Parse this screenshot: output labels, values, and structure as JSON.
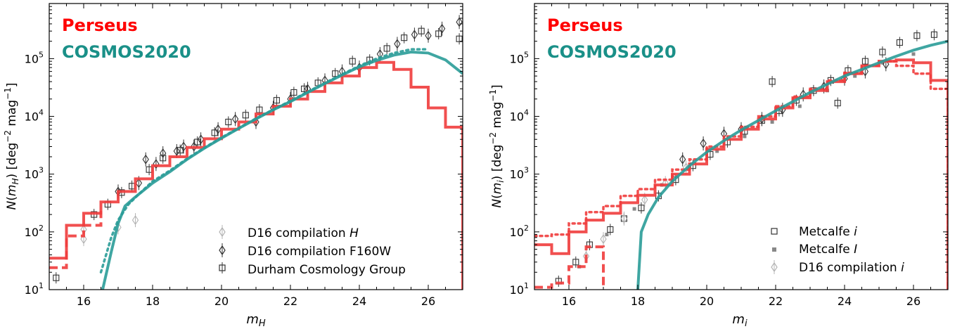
{
  "chart_data": [
    {
      "type": "line",
      "xlabel": "m_H",
      "ylabel": "N(m_H) [deg^-2 mag^-1]",
      "xlim": [
        15,
        27
      ],
      "ylim": [
        10,
        900000
      ],
      "yscale": "log",
      "x_ticks": [
        16,
        18,
        20,
        22,
        24,
        26
      ],
      "annotations": [
        {
          "text": "Perseus",
          "color": "#ff0000"
        },
        {
          "text": "COSMOS2020",
          "color": "#1a9088"
        }
      ],
      "legend": {
        "placement": "lower-right",
        "entries": [
          "D16 compilation H",
          "D16 compilation F160W",
          "Durham Cosmology Group"
        ]
      },
      "series": [
        {
          "name": "Perseus",
          "kind": "step",
          "style": "solid",
          "color": "#f03c3c",
          "edges": [
            15,
            15.5,
            16,
            16.5,
            17,
            17.5,
            18,
            18.5,
            19,
            19.5,
            20,
            20.5,
            21,
            21.5,
            22,
            22.5,
            23,
            23.5,
            24,
            24.5,
            25,
            25.5,
            26,
            26.5,
            27
          ],
          "values": [
            35,
            130,
            210,
            330,
            500,
            830,
            1400,
            2000,
            2900,
            4100,
            6000,
            8000,
            11000,
            15000,
            20000,
            27000,
            38000,
            50000,
            70000,
            86000,
            65000,
            32000,
            14000,
            6500
          ]
        },
        {
          "kind": "step",
          "style": "dashed",
          "color": "#f03c3c",
          "edges": [
            15,
            15.5,
            16,
            16.5
          ],
          "values": [
            24,
            85,
            130,
            230
          ]
        },
        {
          "name": "COSMOS2020",
          "kind": "line",
          "style": "solid",
          "color": "#2a9c98",
          "x": [
            16.55,
            16.8,
            17.0,
            17.2,
            17.45,
            18.0,
            18.5,
            19.0,
            19.5,
            20.0,
            20.5,
            21.0,
            21.5,
            22.0,
            22.5,
            23.0,
            23.5,
            24.0,
            24.5,
            25.0,
            25.5,
            26.0,
            26.5,
            27.0
          ],
          "y": [
            10,
            45,
            140,
            280,
            380,
            700,
            1100,
            1800,
            2800,
            4200,
            6200,
            9000,
            13000,
            18000,
            26000,
            37000,
            52000,
            72000,
            93000,
            115000,
            130000,
            125000,
            95000,
            55000
          ]
        },
        {
          "kind": "line",
          "style": "dotted",
          "color": "#2a9c98",
          "x": [
            16.5,
            16.8,
            17.0,
            17.3,
            17.6,
            18.0,
            18.5,
            19.0,
            19.5,
            20.0,
            21.0,
            22.0,
            23.0,
            24.0,
            24.5,
            25.0,
            25.5,
            26.0
          ],
          "y": [
            20,
            80,
            160,
            300,
            450,
            750,
            1150,
            1850,
            2850,
            4300,
            9200,
            18500,
            38000,
            75000,
            100000,
            125000,
            145000,
            145000
          ]
        }
      ],
      "points": {
        "d16_h": {
          "marker": "diamond",
          "color": "#b4b4b4",
          "x": [
            16.0,
            16.0,
            17.0,
            17.5
          ],
          "y": [
            110,
            75,
            120,
            160
          ]
        },
        "d16_f160w": {
          "marker": "diamond",
          "color": "#333333",
          "x": [
            17.8,
            18.3,
            18.9,
            19.4,
            19.9,
            20.4,
            21.0,
            21.5,
            22.0,
            22.5,
            23.0,
            23.5,
            24.0,
            24.6,
            25.1,
            25.6,
            26.0,
            26.4,
            26.9,
            17.0,
            17.6,
            18.1,
            18.7,
            19.2
          ],
          "y": [
            1800,
            2300,
            3000,
            4000,
            6000,
            9000,
            8000,
            14000,
            20000,
            30000,
            42000,
            60000,
            70000,
            120000,
            180000,
            260000,
            250000,
            330000,
            430000,
            500,
            700,
            1500,
            2500,
            3000
          ]
        },
        "durham": {
          "marker": "square",
          "color": "#333333",
          "x": [
            15.2,
            16.3,
            16.7,
            17.1,
            17.4,
            17.9,
            18.3,
            18.8,
            19.3,
            19.8,
            20.2,
            20.7,
            21.1,
            21.6,
            22.1,
            22.4,
            22.8,
            23.3,
            23.8,
            24.3,
            24.8,
            25.3,
            25.8,
            26.3,
            26.9
          ],
          "y": [
            16,
            200,
            300,
            480,
            620,
            1200,
            1900,
            2600,
            3600,
            5200,
            8000,
            10500,
            13000,
            19000,
            26000,
            30000,
            38000,
            55000,
            90000,
            95000,
            150000,
            230000,
            300000,
            270000,
            220000
          ]
        }
      }
    },
    {
      "type": "line",
      "xlabel": "m_i",
      "ylabel": "N(m_i) [deg^-2 mag^-1]",
      "xlim": [
        15,
        27
      ],
      "ylim": [
        10,
        900000
      ],
      "yscale": "log",
      "x_ticks": [
        16,
        18,
        20,
        22,
        24,
        26
      ],
      "annotations": [
        {
          "text": "Perseus",
          "color": "#ff0000"
        },
        {
          "text": "COSMOS2020",
          "color": "#1a9088"
        }
      ],
      "legend": {
        "placement": "lower-right",
        "entries": [
          "Metcalfe i",
          "Metcalfe I",
          "D16 compilation i"
        ]
      },
      "series": [
        {
          "name": "Perseus",
          "kind": "step",
          "style": "solid",
          "color": "#f03c3c",
          "edges": [
            15,
            15.5,
            16,
            16.5,
            17,
            17.5,
            18,
            18.5,
            19,
            19.5,
            20,
            20.5,
            21,
            21.5,
            22,
            22.5,
            23,
            23.5,
            24,
            24.5,
            25,
            25.5,
            26,
            26.5,
            27
          ],
          "values": [
            60,
            42,
            100,
            160,
            210,
            320,
            430,
            650,
            1000,
            1500,
            2700,
            4000,
            6000,
            9000,
            14000,
            21000,
            28000,
            40000,
            55000,
            75000,
            90000,
            95000,
            85000,
            42000
          ]
        },
        {
          "kind": "step",
          "style": "dashed",
          "color": "#f03c3c",
          "edges": [
            15,
            15.5,
            16,
            16.5,
            17
          ],
          "values": [
            11,
            13,
            25,
            55
          ]
        },
        {
          "kind": "step",
          "style": "dotted",
          "color": "#f03c3c",
          "edges": [
            15,
            15.5,
            16,
            16.5,
            17,
            17.5,
            18,
            18.5,
            19,
            19.5,
            20,
            20.5,
            21,
            21.5,
            22,
            22.5,
            23,
            23.5,
            24,
            24.5,
            25,
            25.5,
            26,
            26.5,
            27
          ],
          "values": [
            85,
            90,
            140,
            220,
            280,
            420,
            550,
            800,
            1200,
            1800,
            3000,
            4500,
            6600,
            10000,
            15000,
            22000,
            30000,
            42000,
            57000,
            75000,
            90000,
            75000,
            55000,
            30000
          ]
        },
        {
          "name": "COSMOS2020",
          "kind": "line",
          "style": "solid",
          "color": "#2a9c98",
          "x": [
            18.0,
            18.1,
            18.3,
            18.6,
            19.0,
            19.5,
            20.0,
            20.5,
            21.0,
            21.5,
            22.0,
            22.5,
            23.0,
            23.5,
            24.0,
            24.5,
            25.0,
            25.5,
            26.0,
            26.5,
            27.0
          ],
          "y": [
            10,
            100,
            200,
            400,
            750,
            1400,
            2400,
            3800,
            5800,
            8500,
            12500,
            18000,
            26000,
            36000,
            50000,
            65000,
            85000,
            110000,
            140000,
            170000,
            200000
          ]
        }
      ],
      "points": {
        "metcalfe_i": {
          "marker": "square",
          "color": "#333333",
          "x": [
            15.7,
            16.2,
            16.6,
            17.2,
            17.6,
            18.1,
            18.6,
            19.1,
            19.6,
            20.1,
            20.6,
            21.1,
            21.6,
            22.1,
            22.6,
            23.1,
            23.6,
            24.1,
            24.6,
            25.1,
            25.6,
            26.1,
            26.6,
            23.8,
            21.9
          ],
          "y": [
            14,
            30,
            60,
            110,
            170,
            260,
            420,
            800,
            1400,
            2200,
            3600,
            5500,
            8500,
            12500,
            19000,
            28000,
            42000,
            62000,
            90000,
            130000,
            190000,
            250000,
            260000,
            17000,
            40000
          ]
        },
        "metcalfe_I": {
          "marker": "dot",
          "color": "#888888",
          "x": [
            16.3,
            17.1,
            17.9,
            18.7,
            19.5,
            20.3,
            21.1,
            21.9,
            22.7,
            23.5,
            24.3,
            25.1,
            26.0
          ],
          "y": [
            25,
            90,
            250,
            650,
            1300,
            2500,
            4500,
            8000,
            15000,
            28000,
            50000,
            85000,
            120000
          ]
        },
        "d16_i": {
          "marker": "diamond",
          "color": "#b4b4b4",
          "x": [
            16.5,
            17.0,
            17.6,
            18.2,
            18.8,
            19.4
          ],
          "y": [
            38,
            75,
            170,
            360,
            700,
            1300
          ]
        },
        "d16_i_dark": {
          "marker": "diamond",
          "color": "#333333",
          "x": [
            19.3,
            19.9,
            20.5,
            21.0,
            21.6,
            22.2,
            22.8,
            23.4,
            24.0,
            24.6,
            25.2
          ],
          "y": [
            1800,
            3400,
            5000,
            6000,
            9000,
            13000,
            24000,
            33000,
            45000,
            60000,
            80000
          ]
        }
      }
    }
  ]
}
